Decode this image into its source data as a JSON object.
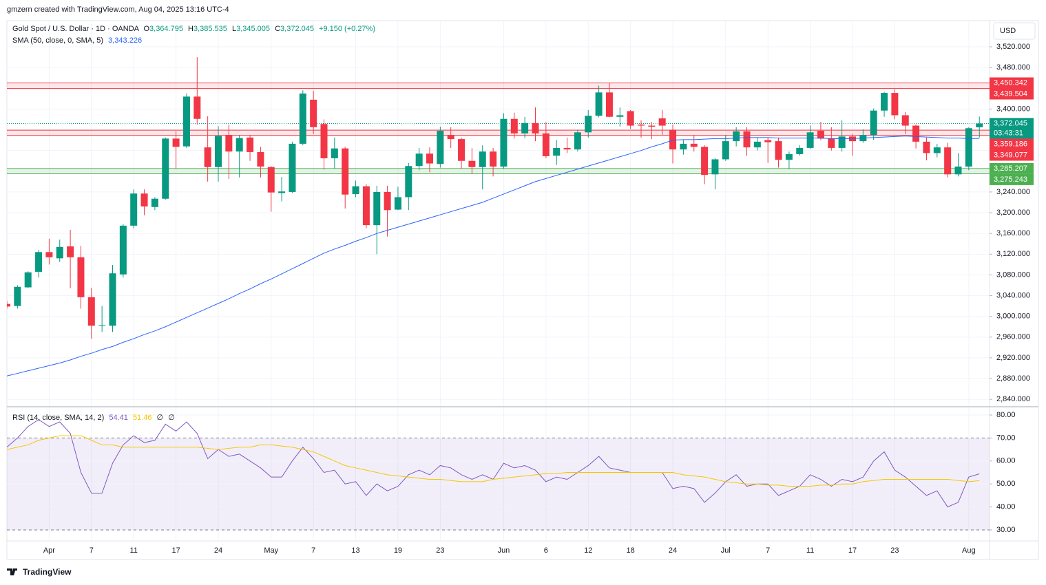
{
  "header": "gmzern created with TradingView.com, Aug 04, 2025 13:16 UTC-4",
  "footer": "TradingView",
  "chart_data": [
    {
      "type": "candlestick",
      "title": "Gold Spot / U.S. Dollar · 1D · OANDA",
      "ohlc_legend": [
        {
          "label": "O",
          "value": "3,364.795"
        },
        {
          "label": "H",
          "value": "3,385.535"
        },
        {
          "label": "L",
          "value": "3,345.005"
        },
        {
          "label": "C",
          "value": "3,372.045"
        }
      ],
      "change": "+9.150 (+0.27%)",
      "currency": "USD",
      "categories": [
        null,
        null,
        null,
        null,
        "Apr",
        null,
        null,
        null,
        "7",
        null,
        null,
        null,
        "11",
        null,
        null,
        null,
        "17",
        null,
        null,
        null,
        "24",
        null,
        null,
        null,
        null,
        "May",
        null,
        null,
        null,
        "7",
        null,
        null,
        null,
        "13",
        null,
        null,
        null,
        "19",
        null,
        null,
        null,
        "23",
        null,
        null,
        null,
        null,
        null,
        "Jun",
        null,
        null,
        null,
        "6",
        null,
        null,
        null,
        "12",
        null,
        null,
        null,
        "18",
        null,
        null,
        null,
        "24",
        null,
        null,
        null,
        null,
        "Jul",
        null,
        null,
        null,
        "7",
        null,
        null,
        null,
        "11",
        null,
        null,
        null,
        "17",
        null,
        null,
        null,
        "23",
        null,
        null,
        null,
        null,
        null,
        null,
        "Aug",
        null
      ],
      "open": [
        3024,
        3020,
        3056,
        3086,
        3124,
        3112,
        3135,
        3114,
        3037,
        2982,
        2982,
        3081,
        3175,
        3237,
        3211,
        3227,
        3343,
        3328,
        3424,
        3326,
        3288,
        3350,
        3318,
        3345,
        3317,
        3288,
        3238,
        3240,
        3333,
        3418,
        3371,
        3305,
        3324,
        3236,
        3251,
        3176,
        3240,
        3206,
        3230,
        3290,
        3314,
        3294,
        3350,
        3342,
        3300,
        3288,
        3318,
        3289,
        3381,
        3353,
        3373,
        3353,
        3310,
        3325,
        3322,
        3355,
        3387,
        3432,
        3385,
        3396,
        3370,
        3368,
        3382,
        3360,
        3322,
        3333,
        3327,
        3274,
        3303,
        3338,
        3357,
        3326,
        3340,
        3338,
        3302,
        3313,
        3325,
        3358,
        3343,
        3325,
        3347,
        3338,
        3350,
        3397,
        3431,
        3388,
        3368,
        3337,
        3315,
        3326,
        3274,
        3289,
        3364.795
      ],
      "high": [
        3030,
        3060,
        3087,
        3128,
        3150,
        3148,
        3167,
        3136,
        3055,
        3020,
        3099,
        3178,
        3245,
        3245,
        3230,
        3345,
        3357,
        3430,
        3500,
        3386,
        3367,
        3370,
        3350,
        3350,
        3327,
        3290,
        3269,
        3337,
        3436,
        3435,
        3380,
        3345,
        3327,
        3262,
        3255,
        3252,
        3252,
        3250,
        3296,
        3325,
        3326,
        3366,
        3365,
        3345,
        3325,
        3330,
        3325,
        3392,
        3393,
        3385,
        3403,
        3375,
        3340,
        3345,
        3360,
        3398,
        3445,
        3451,
        3403,
        3398,
        3378,
        3375,
        3398,
        3370,
        3340,
        3350,
        3330,
        3305,
        3350,
        3365,
        3365,
        3345,
        3345,
        3345,
        3318,
        3330,
        3368,
        3375,
        3365,
        3378,
        3352,
        3361,
        3401,
        3433,
        3438,
        3394,
        3370,
        3345,
        3333,
        3335,
        3315,
        3365,
        3385.535
      ],
      "low": [
        3015,
        3015,
        3055,
        3075,
        3100,
        3105,
        3054,
        3015,
        2957,
        2970,
        2970,
        3075,
        3170,
        3195,
        3205,
        3225,
        3285,
        3325,
        3370,
        3260,
        3260,
        3265,
        3268,
        3300,
        3268,
        3202,
        3222,
        3238,
        3330,
        3352,
        3283,
        3285,
        3208,
        3230,
        3170,
        3120,
        3154,
        3205,
        3205,
        3282,
        3278,
        3287,
        3325,
        3285,
        3275,
        3245,
        3270,
        3285,
        3343,
        3344,
        3338,
        3305,
        3292,
        3315,
        3318,
        3345,
        3384,
        3384,
        3366,
        3362,
        3345,
        3342,
        3350,
        3295,
        3312,
        3318,
        3255,
        3245,
        3300,
        3328,
        3310,
        3320,
        3296,
        3287,
        3284,
        3310,
        3323,
        3340,
        3320,
        3318,
        3310,
        3335,
        3340,
        3385,
        3380,
        3352,
        3324,
        3301,
        3307,
        3268,
        3270,
        3282,
        3345.005
      ],
      "close": [
        3019,
        3057,
        3085,
        3124,
        3114,
        3134,
        3114,
        3037,
        2982,
        2983,
        3083,
        3175,
        3237,
        3212,
        3227,
        3343,
        3327,
        3424,
        3381,
        3288,
        3348,
        3318,
        3344,
        3317,
        3289,
        3239,
        3241,
        3333,
        3430,
        3365,
        3305,
        3324,
        3235,
        3251,
        3176,
        3240,
        3205,
        3230,
        3290,
        3314,
        3295,
        3358,
        3342,
        3300,
        3288,
        3318,
        3289,
        3381,
        3353,
        3373,
        3353,
        3309,
        3325,
        3322,
        3355,
        3387,
        3432,
        3385,
        3388,
        3368,
        3368,
        3366,
        3368,
        3322,
        3333,
        3327,
        3273,
        3303,
        3338,
        3357,
        3326,
        3337,
        3336,
        3302,
        3313,
        3325,
        3355,
        3343,
        3325,
        3347,
        3338,
        3350,
        3397,
        3431,
        3388,
        3368,
        3337,
        3315,
        3326,
        3274,
        3289,
        3363,
        3372.045
      ],
      "up_color": "#089981",
      "down_color": "#f23645",
      "overlay": {
        "name": "SMA (50, close, 0, SMA, 5)",
        "value_label": "3,343.226",
        "color": "#2962ff",
        "values": [
          2885,
          2890,
          2895,
          2900,
          2905,
          2910,
          2916,
          2923,
          2929,
          2936,
          2942,
          2950,
          2957,
          2965,
          2972,
          2980,
          2989,
          2998,
          3007,
          3016,
          3025,
          3034,
          3044,
          3053,
          3063,
          3072,
          3082,
          3092,
          3102,
          3112,
          3122,
          3130,
          3137,
          3145,
          3152,
          3160,
          3166,
          3172,
          3178,
          3184,
          3190,
          3196,
          3202,
          3208,
          3214,
          3220,
          3228,
          3236,
          3244,
          3252,
          3260,
          3266,
          3272,
          3278,
          3284,
          3290,
          3296,
          3302,
          3308,
          3314,
          3320,
          3327,
          3333,
          3340,
          3341,
          3341,
          3342,
          3343,
          3343,
          3344,
          3345,
          3345,
          3345,
          3344,
          3344,
          3344,
          3344,
          3344,
          3343,
          3343,
          3343,
          3344,
          3345,
          3346,
          3347,
          3348,
          3347,
          3346,
          3345,
          3344,
          3344,
          3343,
          3343.226
        ]
      },
      "zones": [
        {
          "top": 3450.342,
          "bottom": 3439.504,
          "top_label": "3,450.342",
          "bottom_label": "3,439.504",
          "color": "#f23645"
        },
        {
          "top": 3359.186,
          "bottom": 3349.077,
          "top_label": "3,359.186",
          "bottom_label": "3,349.077",
          "color": "#f23645"
        },
        {
          "top": 3285.207,
          "bottom": 3275.243,
          "top_label": "3,285.207",
          "bottom_label": "3,275.243",
          "color": "#4caf50"
        }
      ],
      "last": {
        "value": 3372.045,
        "label": "3,372.045",
        "countdown": "03:43:31"
      },
      "ylim": [
        2827,
        3570.5
      ],
      "yticks": [
        {
          "value": 2840,
          "label": "2,840.000"
        },
        {
          "value": 2880,
          "label": "2,880.000"
        },
        {
          "value": 2920,
          "label": "2,920.000"
        },
        {
          "value": 2960,
          "label": "2,960.000"
        },
        {
          "value": 3000,
          "label": "3,000.000"
        },
        {
          "value": 3040,
          "label": "3,040.000"
        },
        {
          "value": 3080,
          "label": "3,080.000"
        },
        {
          "value": 3120,
          "label": "3,120.000"
        },
        {
          "value": 3160,
          "label": "3,160.000"
        },
        {
          "value": 3200,
          "label": "3,200.000"
        },
        {
          "value": 3240,
          "label": "3,240.000"
        },
        {
          "value": 3280,
          "label": "3,280.000"
        },
        {
          "value": 3320,
          "label": "3,320.000"
        },
        {
          "value": 3360,
          "label": "3,360.000"
        },
        {
          "value": 3400,
          "label": "3,400.000"
        },
        {
          "value": 3440,
          "label": "3,440.000"
        },
        {
          "value": 3480,
          "label": "3,480.000"
        },
        {
          "value": 3520,
          "label": "3,520.000"
        }
      ],
      "grid": true
    },
    {
      "type": "line",
      "title": "RSI (14, close, SMA, 14, 2)",
      "series": [
        {
          "color": "#7e57c2",
          "value_label": "54.41",
          "values": [
            66,
            70,
            75,
            78,
            75,
            77,
            72,
            55,
            46,
            46,
            59,
            67,
            71,
            68,
            69,
            76,
            73,
            77,
            72,
            61,
            65,
            62,
            63,
            60,
            57,
            53,
            53,
            60,
            66,
            61,
            55,
            56,
            50,
            51,
            45,
            50,
            47,
            49,
            54,
            56,
            54,
            58,
            57,
            54,
            52,
            54,
            52,
            59,
            57,
            58,
            56,
            51,
            53,
            52,
            55,
            58,
            62,
            57,
            56,
            55,
            55,
            55,
            55,
            48,
            49,
            48,
            42,
            46,
            51,
            54,
            49,
            50,
            50,
            45,
            47,
            49,
            54,
            52,
            49,
            52,
            51,
            53,
            60,
            64,
            56,
            53,
            49,
            45,
            47,
            40,
            42,
            53,
            54.41
          ]
        },
        {
          "color": "#f7c600",
          "value_label": "51.46",
          "values": [
            65,
            66,
            67,
            69,
            70,
            71,
            71,
            71,
            69,
            67,
            67,
            66,
            66,
            66,
            66,
            66,
            66,
            66,
            66,
            65.5,
            65,
            65.5,
            66,
            66,
            67,
            67,
            66.5,
            66,
            65,
            64,
            62,
            60,
            58,
            57,
            56,
            55,
            54,
            53.5,
            53,
            52.5,
            52,
            52,
            51.5,
            51,
            51,
            51,
            52,
            52.5,
            53,
            53.5,
            54,
            54.5,
            54.5,
            55,
            55,
            55,
            55,
            55,
            55,
            55,
            55,
            55,
            55,
            55,
            54,
            53.5,
            53,
            52,
            51,
            50.5,
            50,
            50,
            49.5,
            49.5,
            49,
            49,
            49,
            49.5,
            49.5,
            50,
            50,
            51,
            51.5,
            52,
            52,
            52,
            52,
            52,
            52,
            52,
            51.5,
            51,
            51.46
          ]
        }
      ],
      "na_labels": [
        "∅",
        "∅"
      ],
      "band": [
        30,
        70
      ],
      "band_color": "#7e57c2",
      "ylim": [
        25.5,
        83.3
      ],
      "yticks": [
        {
          "value": 30,
          "label": "30.00"
        },
        {
          "value": 40,
          "label": "40.00"
        },
        {
          "value": 50,
          "label": "50.00"
        },
        {
          "value": 60,
          "label": "60.00"
        },
        {
          "value": 70,
          "label": "70.00"
        },
        {
          "value": 80,
          "label": "80.00"
        }
      ]
    }
  ]
}
